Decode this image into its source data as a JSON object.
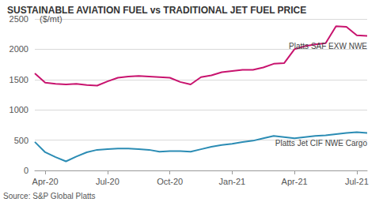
{
  "chart_data": {
    "type": "line",
    "title": "SUSTAINABLE AVIATION FUEL vs TRADITIONAL JET FUEL PRICE",
    "y_label": "($/mt)",
    "source": "Source: S&P Global Platts",
    "categories": [
      null,
      "Apr-20",
      null,
      null,
      null,
      null,
      null,
      "Jul-20",
      null,
      null,
      null,
      null,
      null,
      "Oct-20",
      null,
      null,
      null,
      null,
      null,
      "Jan-21",
      null,
      null,
      null,
      null,
      null,
      "Apr-21",
      null,
      null,
      null,
      null,
      null,
      "Jul-21",
      null
    ],
    "series": [
      {
        "name": "Platts SAF EXW NWE",
        "color": "#c8136e",
        "values": [
          1600,
          1450,
          1430,
          1420,
          1430,
          1410,
          1400,
          1470,
          1530,
          1550,
          1560,
          1550,
          1540,
          1530,
          1460,
          1420,
          1540,
          1570,
          1620,
          1640,
          1660,
          1660,
          1700,
          1760,
          1770,
          2000,
          2050,
          2080,
          2100,
          2380,
          2370,
          2230,
          2220
        ]
      },
      {
        "name": "Platts Jet CIF NWE Cargo",
        "color": "#2b8cb4",
        "values": [
          470,
          300,
          220,
          150,
          230,
          300,
          340,
          350,
          360,
          360,
          350,
          340,
          310,
          320,
          320,
          310,
          350,
          390,
          420,
          440,
          470,
          490,
          530,
          570,
          550,
          530,
          550,
          570,
          580,
          600,
          620,
          630,
          620
        ]
      }
    ],
    "ylim": [
      0,
      2500
    ],
    "yticks": [
      0,
      500,
      1000,
      1500,
      2000,
      2500
    ],
    "grid": true
  }
}
